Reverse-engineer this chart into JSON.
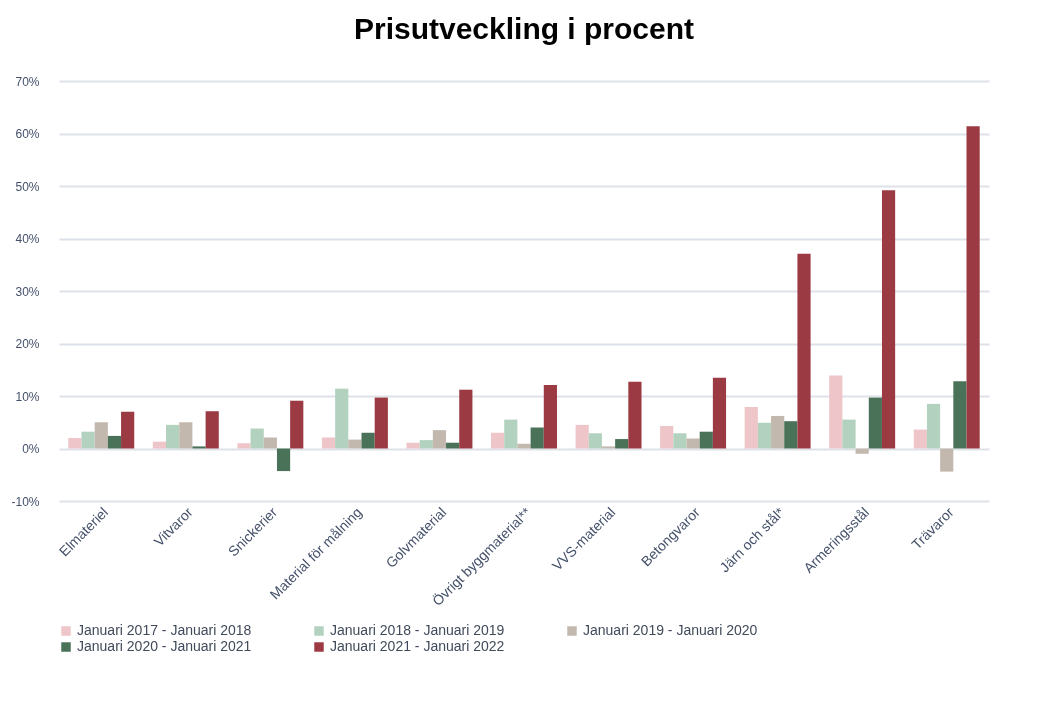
{
  "chart_data": {
    "type": "bar",
    "title": "Prisutveckling i procent",
    "categories": [
      "Elmateriel",
      "Vitvaror",
      "Snickerier",
      "Material för målning",
      "Golvmaterial",
      "Övrigt byggmaterial**",
      "VVS-material",
      "Betongvaror",
      "Järn och stål*",
      "Armeringsstål",
      "Trävaror"
    ],
    "series": [
      {
        "name": "Januari 2017 - Januari 2018",
        "color": "#eec5c9",
        "values": [
          2.0,
          1.3,
          1.0,
          2.1,
          1.1,
          3.0,
          4.5,
          4.3,
          7.9,
          13.9,
          3.6
        ]
      },
      {
        "name": "Januari 2018 - Januari 2019",
        "color": "#b3d1bf",
        "values": [
          3.2,
          4.5,
          3.8,
          11.4,
          1.6,
          5.5,
          2.9,
          2.9,
          4.9,
          5.5,
          8.5
        ]
      },
      {
        "name": "Januari 2019 - Januari 2020",
        "color": "#c3b8ae",
        "values": [
          5.0,
          5.0,
          2.1,
          1.7,
          3.5,
          0.9,
          0.4,
          1.9,
          6.2,
          -1.0,
          -4.4
        ]
      },
      {
        "name": "Januari 2020 - Januari 2021",
        "color": "#4a7259",
        "values": [
          2.4,
          0.4,
          -4.3,
          3.0,
          1.1,
          4.0,
          1.8,
          3.2,
          5.2,
          9.7,
          12.8
        ]
      },
      {
        "name": "Januari 2021 - Januari 2022",
        "color": "#9b3a42",
        "values": [
          7.0,
          7.1,
          9.1,
          9.7,
          11.2,
          12.1,
          12.7,
          13.5,
          37.1,
          49.2,
          61.4
        ]
      }
    ],
    "ylim": [
      -10,
      70
    ],
    "yticks": [
      {
        "value": -10,
        "label": "-10%"
      },
      {
        "value": 0,
        "label": "0%"
      },
      {
        "value": 10,
        "label": "10%"
      },
      {
        "value": 20,
        "label": "20%"
      },
      {
        "value": 30,
        "label": "30%"
      },
      {
        "value": 40,
        "label": "40%"
      },
      {
        "value": 50,
        "label": "50%"
      },
      {
        "value": 60,
        "label": "60%"
      },
      {
        "value": 70,
        "label": "70%"
      }
    ],
    "grid": "y",
    "legend": "bottom"
  }
}
